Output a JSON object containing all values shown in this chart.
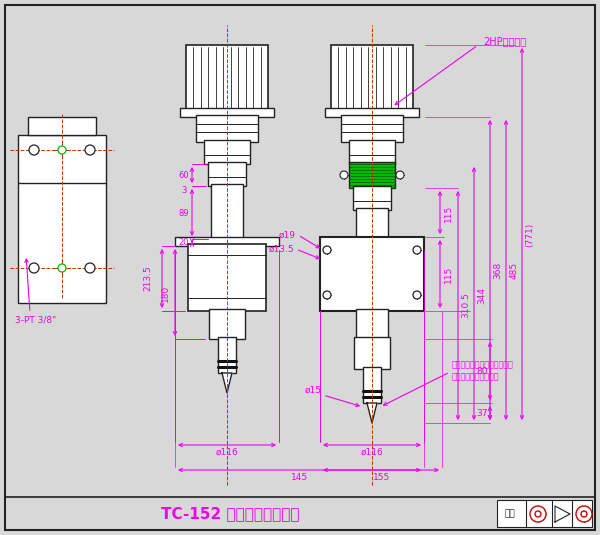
{
  "title": "TC-152 油壓頭簡易組合圖",
  "bg_color": "#d8d8d8",
  "line_color": "#222222",
  "dim_color": "#ee00ee",
  "center_color": "#bb3300",
  "green_color": "#00bb00",
  "white": "#ffffff",
  "annotation_2hp": "2HP主軸馬達",
  "label_3pt": "3-PT 3/8\"",
  "chuck_note_line1": "夾頭組長度不同高度也會不同",
  "chuck_note_line2": "依據實際馬達高度為主",
  "d116": "ø116",
  "d116b": "ø116",
  "d19": "ø19",
  "d13_5": "ø13.5",
  "d15": "ø15",
  "w145": "145",
  "w155": "155",
  "w60": "60",
  "w3": "3",
  "w89": "89",
  "w20": "20",
  "h213_5": "213.5",
  "h180": "180",
  "h115a": "115",
  "h115b": "115",
  "h310_5": "310.5",
  "h344": "344",
  "h368": "368",
  "h485": "485",
  "h771": "(771)",
  "h80": "80",
  "h37": "37",
  "proj_label": "投影"
}
